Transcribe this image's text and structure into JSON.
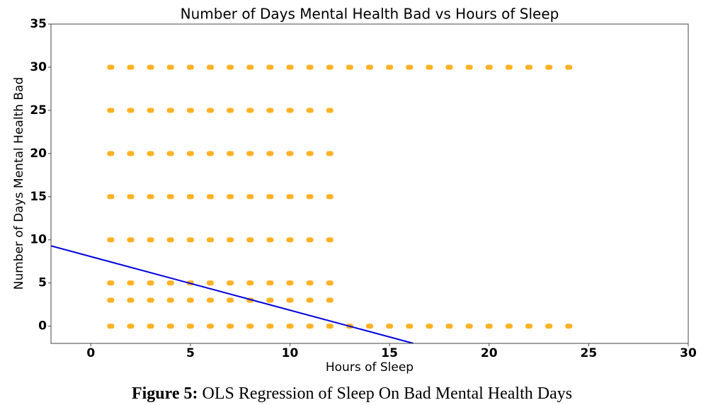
{
  "chart_data": {
    "type": "scatter",
    "title": "Number of Days Mental Health Bad vs Hours of Sleep",
    "x_label": "Hours of Sleep",
    "y_label": "Number of Days Mental Health Bad",
    "caption": {
      "label": "Figure 5:",
      "text": "OLS Regression of Sleep On Bad Mental Health Days"
    },
    "xlim": [
      -2,
      30
    ],
    "xticks": [
      0,
      5,
      10,
      15,
      20,
      25,
      30
    ],
    "ylim": [
      -2,
      35
    ],
    "yticks": [
      0,
      5,
      10,
      15,
      20,
      25,
      30,
      35
    ],
    "color": "#ffa500",
    "line_color": "#0000dd",
    "x": [
      1,
      1,
      1,
      1,
      1,
      1,
      1,
      1,
      2,
      2,
      2,
      2,
      2,
      2,
      2,
      2,
      3,
      3,
      3,
      3,
      3,
      3,
      3,
      3,
      4,
      4,
      4,
      4,
      4,
      4,
      4,
      4,
      5,
      5,
      5,
      5,
      5,
      5,
      5,
      5,
      6,
      6,
      6,
      6,
      6,
      6,
      6,
      6,
      7,
      7,
      7,
      7,
      7,
      7,
      7,
      7,
      8,
      8,
      8,
      8,
      8,
      8,
      8,
      8,
      9,
      9,
      9,
      9,
      9,
      9,
      9,
      9,
      10,
      10,
      10,
      10,
      10,
      10,
      10,
      10,
      11,
      11,
      11,
      11,
      11,
      11,
      11,
      11,
      12,
      12,
      12,
      12,
      12,
      12,
      12,
      12,
      13,
      13,
      14,
      14,
      15,
      15,
      16,
      16,
      17,
      17,
      18,
      18,
      19,
      19,
      20,
      20,
      21,
      21,
      22,
      22,
      23,
      23,
      24,
      24
    ],
    "y": [
      0,
      3,
      5,
      10,
      15,
      20,
      25,
      30,
      0,
      3,
      5,
      10,
      15,
      20,
      25,
      30,
      0,
      3,
      5,
      10,
      15,
      20,
      25,
      30,
      0,
      3,
      5,
      10,
      15,
      20,
      25,
      30,
      0,
      3,
      5,
      10,
      15,
      20,
      25,
      30,
      0,
      3,
      5,
      10,
      15,
      20,
      25,
      30,
      0,
      3,
      5,
      10,
      15,
      20,
      25,
      30,
      0,
      3,
      5,
      10,
      15,
      20,
      25,
      30,
      0,
      3,
      5,
      10,
      15,
      20,
      25,
      30,
      0,
      3,
      5,
      10,
      15,
      20,
      25,
      30,
      0,
      3,
      5,
      10,
      15,
      20,
      25,
      30,
      0,
      3,
      5,
      10,
      15,
      20,
      25,
      30,
      0,
      30,
      0,
      30,
      0,
      30,
      0,
      30,
      0,
      30,
      0,
      30,
      0,
      30,
      0,
      30,
      0,
      30,
      0,
      30,
      0,
      30,
      0,
      30
    ],
    "regression": {
      "x": [
        -2,
        16.2
      ],
      "y": [
        9.3,
        -2
      ]
    }
  }
}
